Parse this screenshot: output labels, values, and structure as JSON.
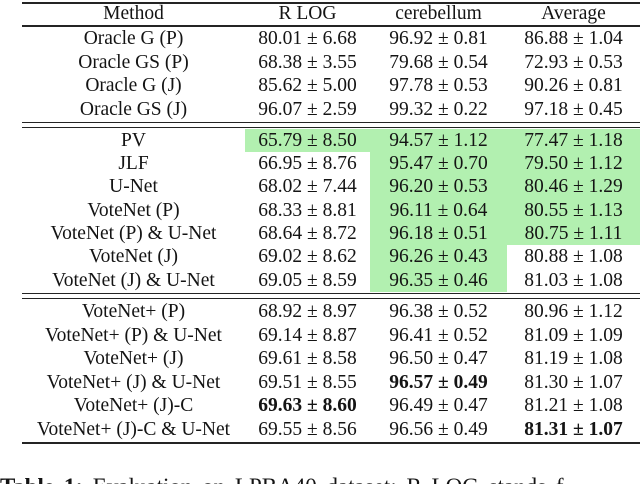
{
  "colors": {
    "highlight": "#b2f0b0"
  },
  "table": {
    "columns": [
      "Method",
      "R LOG",
      "cerebellum",
      "Average"
    ],
    "sections": [
      {
        "name": "oracle",
        "rows": [
          {
            "method": "Oracle G (P)",
            "cells": [
              {
                "text": "80.01 ± 6.68"
              },
              {
                "text": "96.92 ± 0.81"
              },
              {
                "text": "86.88 ± 1.04"
              }
            ]
          },
          {
            "method": "Oracle GS (P)",
            "cells": [
              {
                "text": "68.38 ± 3.55"
              },
              {
                "text": "79.68 ± 0.54"
              },
              {
                "text": "72.93 ± 0.53"
              }
            ]
          },
          {
            "method": "Oracle G (J)",
            "cells": [
              {
                "text": "85.62 ± 5.00"
              },
              {
                "text": "97.78 ± 0.53"
              },
              {
                "text": "90.26 ± 0.81"
              }
            ]
          },
          {
            "method": "Oracle GS (J)",
            "cells": [
              {
                "text": "96.07 ± 2.59"
              },
              {
                "text": "99.32 ± 0.22"
              },
              {
                "text": "97.18 ± 0.45"
              }
            ]
          }
        ]
      },
      {
        "name": "baselines",
        "rows": [
          {
            "method": "PV",
            "cells": [
              {
                "text": "65.79 ± 8.50",
                "highlight": true
              },
              {
                "text": "94.57 ± 1.12",
                "highlight": true
              },
              {
                "text": "77.47 ± 1.18",
                "highlight": true
              }
            ]
          },
          {
            "method": "JLF",
            "cells": [
              {
                "text": "66.95 ± 8.76"
              },
              {
                "text": "95.47 ± 0.70",
                "highlight": true
              },
              {
                "text": "79.50 ± 1.12",
                "highlight": true
              }
            ]
          },
          {
            "method": "U-Net",
            "cells": [
              {
                "text": "68.02 ± 7.44"
              },
              {
                "text": "96.20 ± 0.53",
                "highlight": true
              },
              {
                "text": "80.46 ± 1.29",
                "highlight": true
              }
            ]
          },
          {
            "method": "VoteNet (P)",
            "cells": [
              {
                "text": "68.33 ± 8.81"
              },
              {
                "text": "96.11 ± 0.64",
                "highlight": true
              },
              {
                "text": "80.55 ± 1.13",
                "highlight": true
              }
            ]
          },
          {
            "method": "VoteNet (P) & U-Net",
            "cells": [
              {
                "text": "68.64 ± 8.72"
              },
              {
                "text": "96.18 ± 0.51",
                "highlight": true
              },
              {
                "text": "80.75 ± 1.11",
                "highlight": true
              }
            ]
          },
          {
            "method": "VoteNet (J)",
            "cells": [
              {
                "text": "69.02 ± 8.62"
              },
              {
                "text": "96.26 ± 0.43",
                "highlight": true
              },
              {
                "text": "80.88 ± 1.08"
              }
            ]
          },
          {
            "method": "VoteNet (J) & U-Net",
            "cells": [
              {
                "text": "69.05 ± 8.59"
              },
              {
                "text": "96.35 ± 0.46",
                "highlight": true
              },
              {
                "text": "81.03 ± 1.08"
              }
            ]
          }
        ]
      },
      {
        "name": "votenet-plus",
        "rows": [
          {
            "method": "VoteNet+ (P)",
            "cells": [
              {
                "text": "68.92 ± 8.97"
              },
              {
                "text": "96.38 ± 0.52"
              },
              {
                "text": "80.96 ± 1.12"
              }
            ]
          },
          {
            "method": "VoteNet+ (P) & U-Net",
            "cells": [
              {
                "text": "69.14 ± 8.87"
              },
              {
                "text": "96.41 ± 0.52"
              },
              {
                "text": "81.09 ± 1.09"
              }
            ]
          },
          {
            "method": "VoteNet+ (J)",
            "cells": [
              {
                "text": "69.61 ± 8.58"
              },
              {
                "text": "96.50 ± 0.47"
              },
              {
                "text": "81.19 ± 1.08"
              }
            ]
          },
          {
            "method": "VoteNet+ (J) & U-Net",
            "cells": [
              {
                "text": "69.51 ± 8.55"
              },
              {
                "text": "96.57 ± 0.49",
                "bold": true
              },
              {
                "text": "81.30 ± 1.07"
              }
            ]
          },
          {
            "method": "VoteNet+ (J)-C",
            "cells": [
              {
                "text": "69.63 ± 8.60",
                "bold": true
              },
              {
                "text": "96.49 ± 0.47"
              },
              {
                "text": "81.21 ± 1.08"
              }
            ]
          },
          {
            "method": "VoteNet+ (J)-C & U-Net",
            "cells": [
              {
                "text": "69.55 ± 8.56"
              },
              {
                "text": "96.56 ± 0.49"
              },
              {
                "text": "81.31 ± 1.07",
                "bold": true
              }
            ]
          }
        ]
      }
    ]
  },
  "caption": {
    "label": "Table 1:",
    "text": " Evaluation on LPBA40 dataset: R LOG stands f"
  }
}
